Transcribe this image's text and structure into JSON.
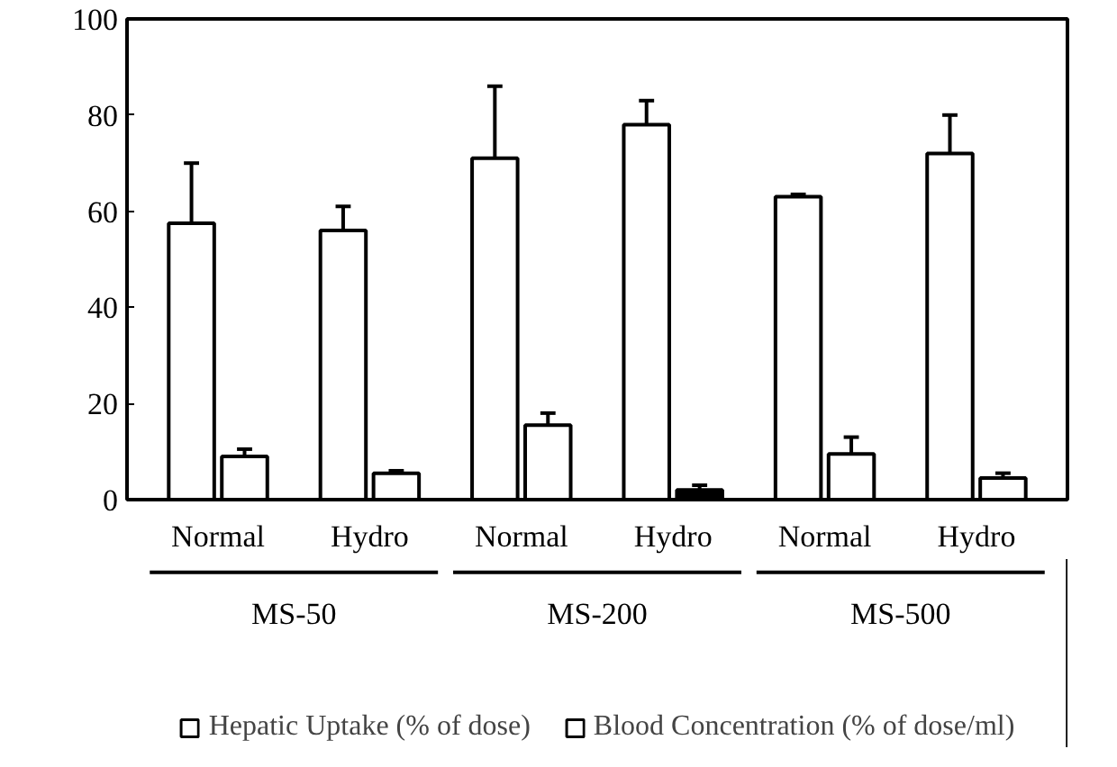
{
  "chart_data": {
    "type": "bar",
    "categories": [
      "Normal",
      "Hydro",
      "Normal",
      "Hydro",
      "Normal",
      "Hydro"
    ],
    "series": [
      {
        "name": "Hepatic Uptake (% of dose)",
        "color": "#ffffff",
        "values": [
          57.5,
          56,
          71,
          78,
          63,
          72
        ],
        "errors": [
          [
            57.5,
            70
          ],
          [
            56,
            61
          ],
          [
            71,
            86
          ],
          [
            78,
            83
          ],
          [
            63,
            63.5
          ],
          [
            72,
            80
          ]
        ]
      },
      {
        "name": "Blood Concentration (% of dose/ml)",
        "color": "#ffffff",
        "colors": [
          "#ffffff",
          "#ffffff",
          "#ffffff",
          "#000000",
          "#ffffff",
          "#ffffff"
        ],
        "values": [
          9,
          5.5,
          15.5,
          2,
          9.5,
          4.5
        ],
        "errors": [
          [
            9,
            10.5
          ],
          [
            5.5,
            6
          ],
          [
            15.5,
            18
          ],
          [
            2,
            3
          ],
          [
            9.5,
            13
          ],
          [
            4.5,
            5.5
          ]
        ]
      }
    ],
    "annotations": [
      "MS-50",
      "MS-200",
      "MS-500"
    ],
    "ylim": [
      0,
      100
    ],
    "yticks": [
      0,
      20,
      40,
      60,
      80,
      100
    ],
    "grid": false,
    "legend": "bottom"
  }
}
